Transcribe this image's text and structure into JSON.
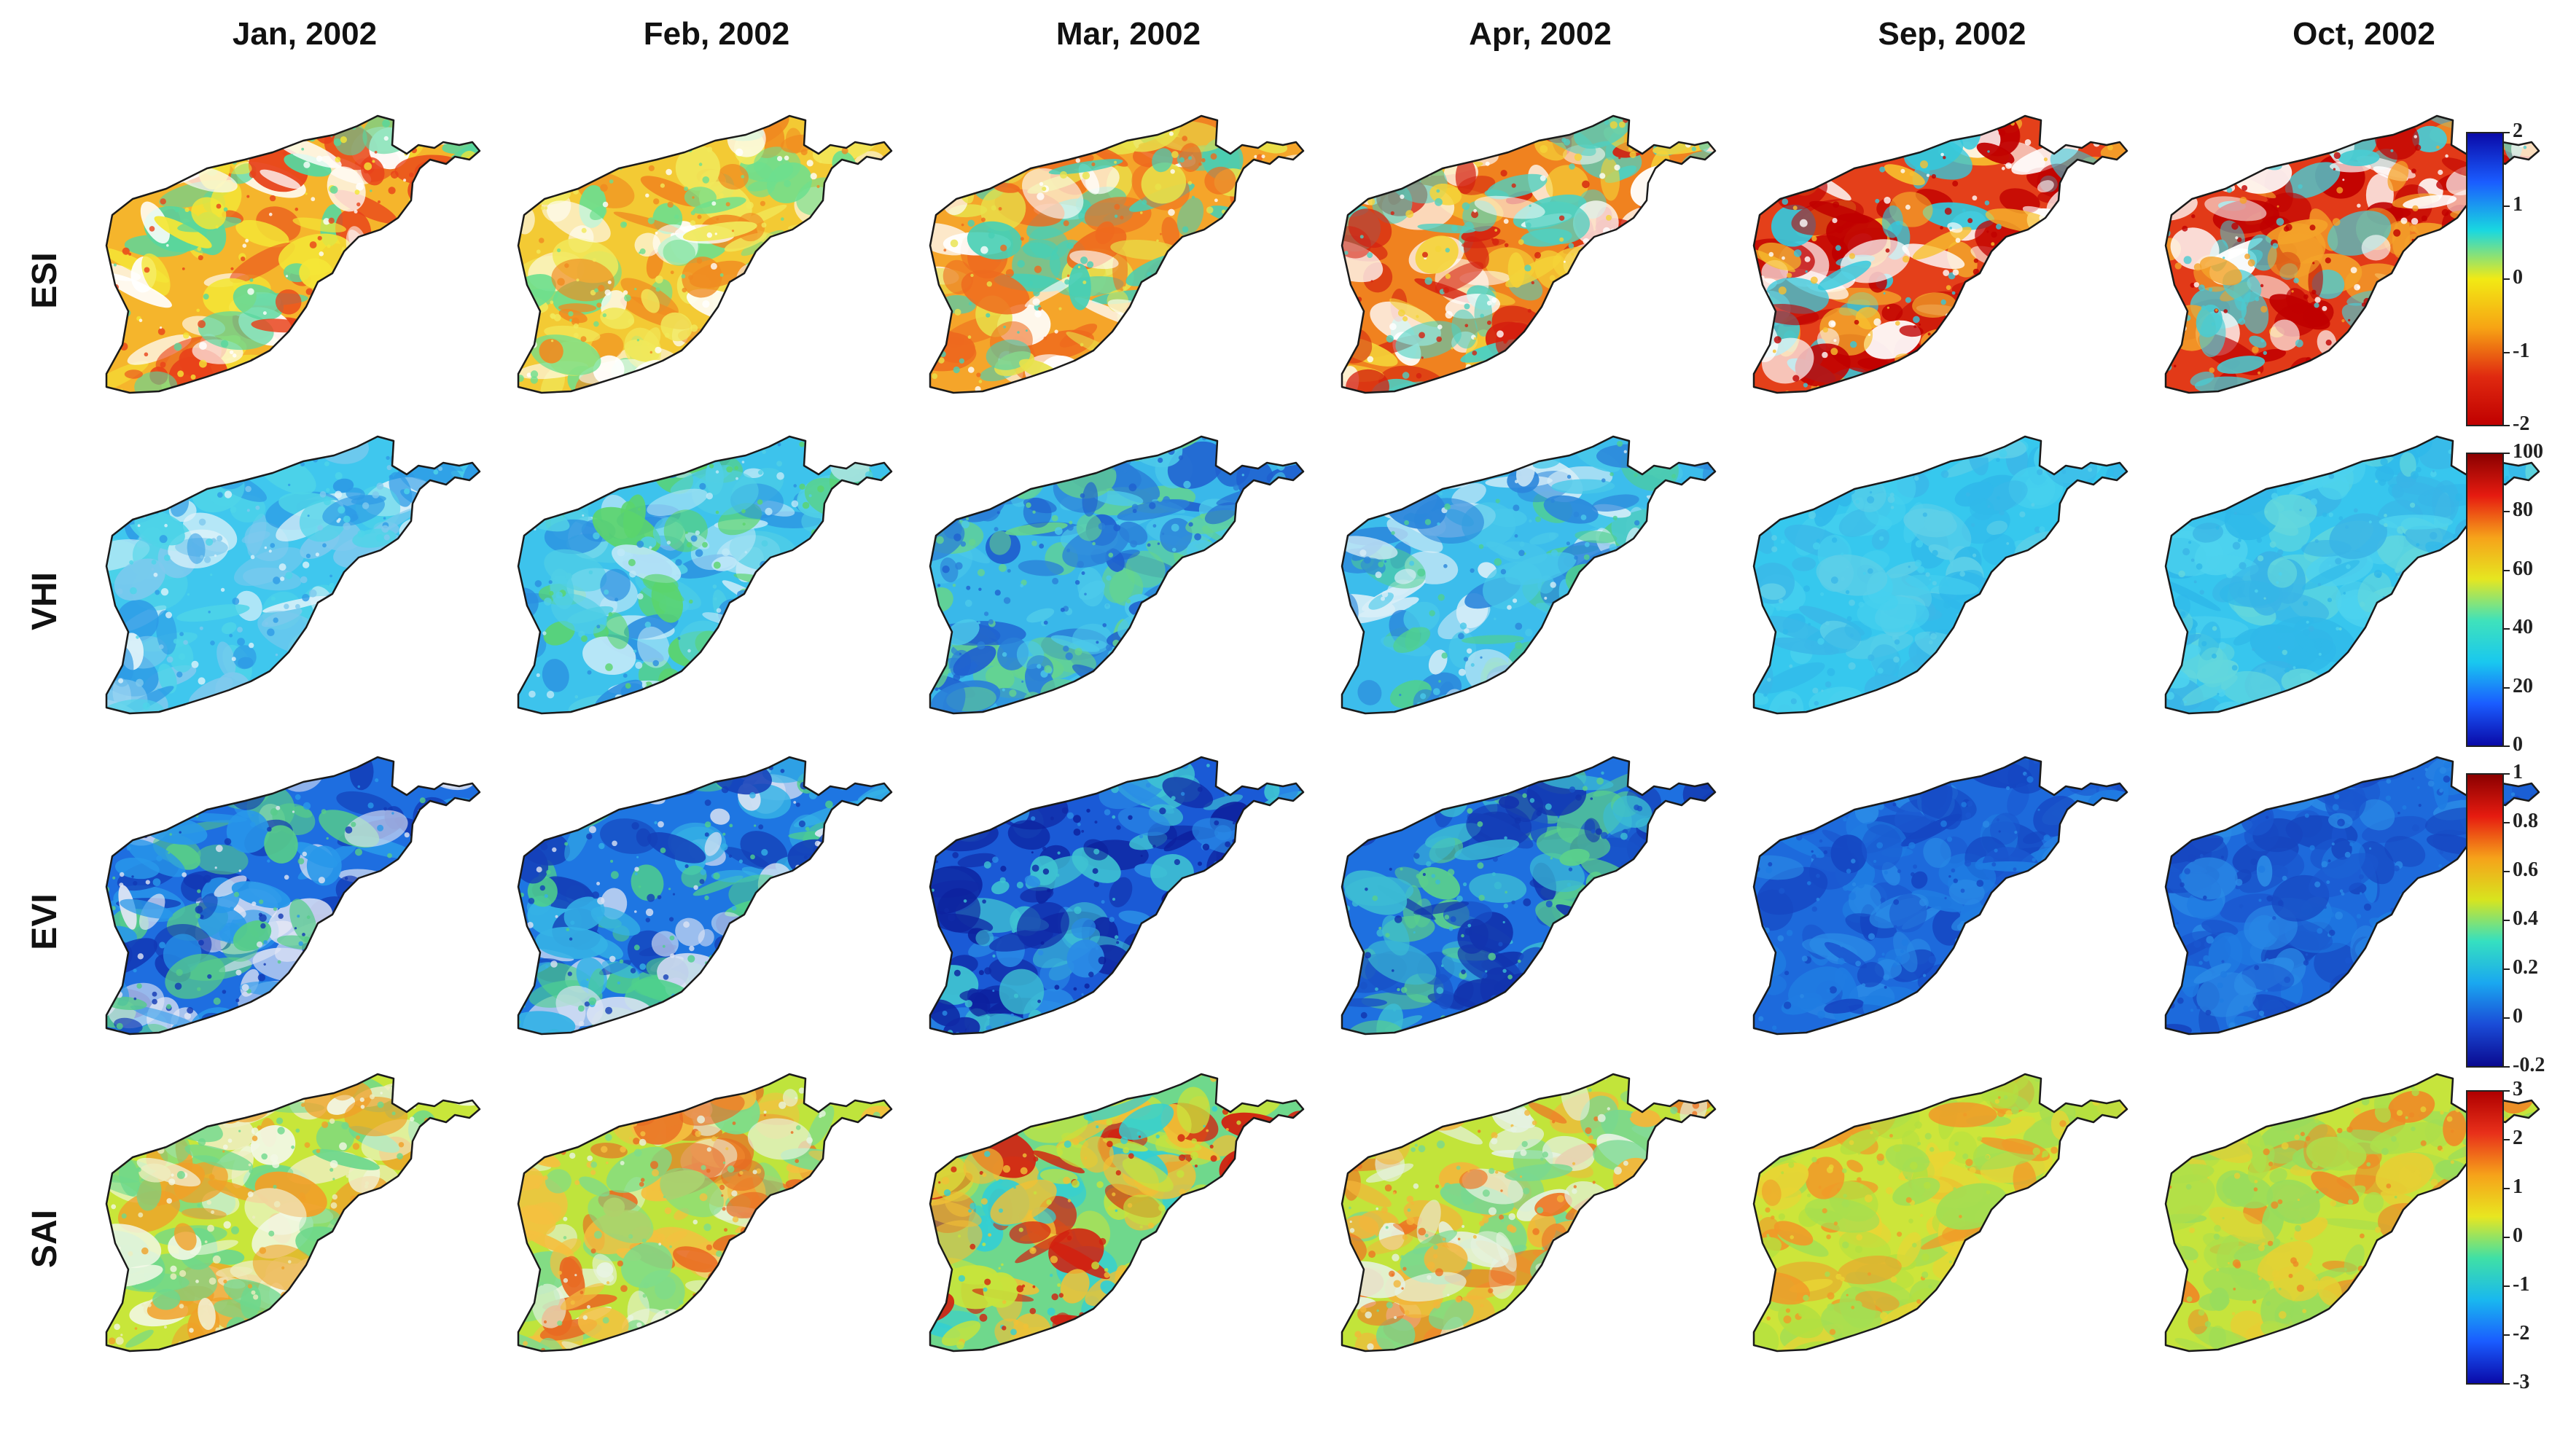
{
  "figure": {
    "columns": [
      "Jan, 2002",
      "Feb, 2002",
      "Mar, 2002",
      "Apr, 2002",
      "Sep, 2002",
      "Oct, 2002"
    ],
    "rows": [
      {
        "label": "ESI",
        "colorbar": {
          "ticks": [
            "2",
            "1",
            "0",
            "-1",
            "-2"
          ],
          "gradient": [
            "#0a0aa8",
            "#1a5cff",
            "#19d8e0",
            "#f2ea14",
            "#f7a414",
            "#e02a10",
            "#c00000"
          ]
        },
        "maps": [
          {
            "month": "Jan, 2002",
            "base": "#f5b52c",
            "patches": [
              "#e8421a",
              "#58d79e",
              "#ffffff",
              "#f4e636"
            ]
          },
          {
            "month": "Feb, 2002",
            "base": "#f3ca34",
            "patches": [
              "#f08a20",
              "#6ddf8e",
              "#ffffff",
              "#f1e85a"
            ]
          },
          {
            "month": "Mar, 2002",
            "base": "#f5a52a",
            "patches": [
              "#ee6a1e",
              "#e8e24a",
              "#ffffff",
              "#47cfb5"
            ]
          },
          {
            "month": "Apr, 2002",
            "base": "#f0821f",
            "patches": [
              "#d4200f",
              "#f4d338",
              "#ffffff",
              "#4fd0c0"
            ]
          },
          {
            "month": "Sep, 2002",
            "base": "#e4401a",
            "patches": [
              "#c00000",
              "#f8c12f",
              "#ffffff",
              "#34c8dc"
            ]
          },
          {
            "month": "Oct, 2002",
            "base": "#e23a18",
            "patches": [
              "#c00000",
              "#f4a32a",
              "#ffffff",
              "#4acbd2"
            ]
          }
        ]
      },
      {
        "label": "VHI",
        "colorbar": {
          "ticks": [
            "100",
            "80",
            "60",
            "40",
            "20",
            "0"
          ],
          "gradient": [
            "#8b0000",
            "#e61b10",
            "#f6a21a",
            "#e6e620",
            "#3fe2bb",
            "#19c8ef",
            "#1a5cff",
            "#0a0aa8"
          ]
        },
        "maps": [
          {
            "month": "Jan, 2002",
            "base": "#3fc7ee",
            "patches": [
              "#2e9be6",
              "#dff2fa",
              "#4ed4e8",
              "#7fc9ee"
            ]
          },
          {
            "month": "Feb, 2002",
            "base": "#3dc3ec",
            "patches": [
              "#2a8ee0",
              "#5bd46c",
              "#bfe8f8",
              "#50cfe6"
            ]
          },
          {
            "month": "Mar, 2002",
            "base": "#39b8ea",
            "patches": [
              "#2a7fd8",
              "#1f60cf",
              "#65d48e",
              "#4cc9ea"
            ]
          },
          {
            "month": "Apr, 2002",
            "base": "#3cbdec",
            "patches": [
              "#2b86db",
              "#4fcf92",
              "#d8eef8",
              "#48c8ea"
            ]
          },
          {
            "month": "Sep, 2002",
            "base": "#36c8ee",
            "patches": [
              "#30b9ea",
              "#46d0ee",
              "#5ccfe8",
              "#3ab8e8"
            ]
          },
          {
            "month": "Oct, 2002",
            "base": "#37c6ee",
            "patches": [
              "#2fb8e9",
              "#4dd2ee",
              "#63d7dd",
              "#39b4e6"
            ]
          }
        ]
      },
      {
        "label": "EVI",
        "colorbar": {
          "ticks": [
            "1",
            "0.8",
            "0.6",
            "0.4",
            "0.2",
            "0",
            "-0.2"
          ],
          "gradient": [
            "#8b0000",
            "#e61b10",
            "#f6a21a",
            "#d8e41e",
            "#35e0c0",
            "#1aa8f0",
            "#1a4cd8",
            "#0a0a90"
          ]
        },
        "maps": [
          {
            "month": "Jan, 2002",
            "base": "#1e6ee0",
            "patches": [
              "#1238b4",
              "#e2e6f4",
              "#2898ea",
              "#56cc8a"
            ]
          },
          {
            "month": "Feb, 2002",
            "base": "#1e76e2",
            "patches": [
              "#1440b8",
              "#dce4f4",
              "#35b2e6",
              "#4fd08c"
            ]
          },
          {
            "month": "Mar, 2002",
            "base": "#1a5ad6",
            "patches": [
              "#0c1f9c",
              "#2a8ce6",
              "#3fc4d2",
              "#102aa6"
            ]
          },
          {
            "month": "Apr, 2002",
            "base": "#1e70e0",
            "patches": [
              "#1234ae",
              "#3bbcd4",
              "#5ad08c",
              "#1852c8"
            ]
          },
          {
            "month": "Sep, 2002",
            "base": "#1d6adc",
            "patches": [
              "#1a58d0",
              "#2a8ae6",
              "#1f7ce2",
              "#1546c2"
            ]
          },
          {
            "month": "Oct, 2002",
            "base": "#1d6adc",
            "patches": [
              "#1a56ce",
              "#2a8ae6",
              "#1f7ce2",
              "#1646c0"
            ]
          }
        ]
      },
      {
        "label": "SAI",
        "colorbar": {
          "ticks": [
            "3",
            "2",
            "1",
            "0",
            "-1",
            "-2",
            "-3"
          ],
          "gradient": [
            "#b00000",
            "#e8301a",
            "#f6a21a",
            "#e8e620",
            "#3fe0a6",
            "#19b8ef",
            "#1a5cff",
            "#0a0aa8"
          ]
        },
        "maps": [
          {
            "month": "Jan, 2002",
            "base": "#c8e63a",
            "patches": [
              "#eeeec0",
              "#f2f8e6",
              "#f0a028",
              "#6ed88c"
            ]
          },
          {
            "month": "Feb, 2002",
            "base": "#bfe43c",
            "patches": [
              "#f4c040",
              "#7edc8a",
              "#e8f4e2",
              "#e86a22"
            ]
          },
          {
            "month": "Mar, 2002",
            "base": "#6fd88c",
            "patches": [
              "#d2200f",
              "#f0c036",
              "#34cfd2",
              "#c6e43c"
            ]
          },
          {
            "month": "Apr, 2002",
            "base": "#c2e43a",
            "patches": [
              "#f2b63a",
              "#78d890",
              "#e6f2e2",
              "#ee7424"
            ]
          },
          {
            "month": "Sep, 2002",
            "base": "#cde53a",
            "patches": [
              "#b4e040",
              "#e8d534",
              "#f09a28",
              "#a4de52"
            ]
          },
          {
            "month": "Oct, 2002",
            "base": "#c6e43c",
            "patches": [
              "#aedf4a",
              "#e6cf34",
              "#ee8a26",
              "#98dc5c"
            ]
          }
        ]
      }
    ]
  }
}
